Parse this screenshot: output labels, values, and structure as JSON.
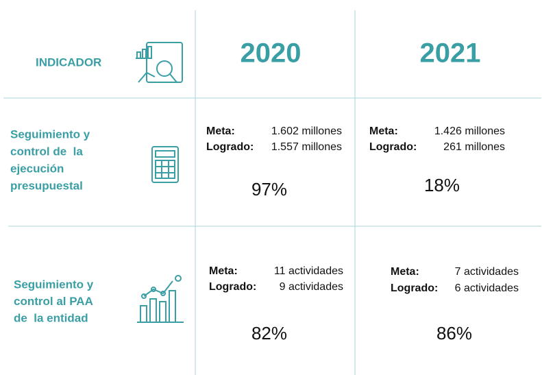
{
  "header": {
    "indicator": "INDICADOR",
    "years": [
      "2020",
      "2021"
    ]
  },
  "rows": [
    {
      "indicator": [
        "Seguimiento y",
        "control de  la",
        "ejecución",
        "presupuestal"
      ],
      "cells": [
        {
          "meta_label": "Meta:",
          "meta": "1.602 millones",
          "achieved_label": "Logrado:",
          "achieved": "1.557 millones",
          "percent": "97%"
        },
        {
          "meta_label": "Meta:",
          "meta": "1.426 millones",
          "achieved_label": "Logrado:",
          "achieved": "261 millones",
          "percent": "18%"
        }
      ]
    },
    {
      "indicator": [
        "Seguimiento y",
        "control al PAA",
        "de  la entidad"
      ],
      "cells": [
        {
          "meta_label": "Meta:",
          "meta": "11 actividades",
          "achieved_label": "Logrado:",
          "achieved": "9 actividades",
          "percent": "82%"
        },
        {
          "meta_label": "Meta:",
          "meta": "7 actividades",
          "achieved_label": "Logrado:",
          "achieved": "6 actividades",
          "percent": "86%"
        }
      ]
    }
  ]
}
